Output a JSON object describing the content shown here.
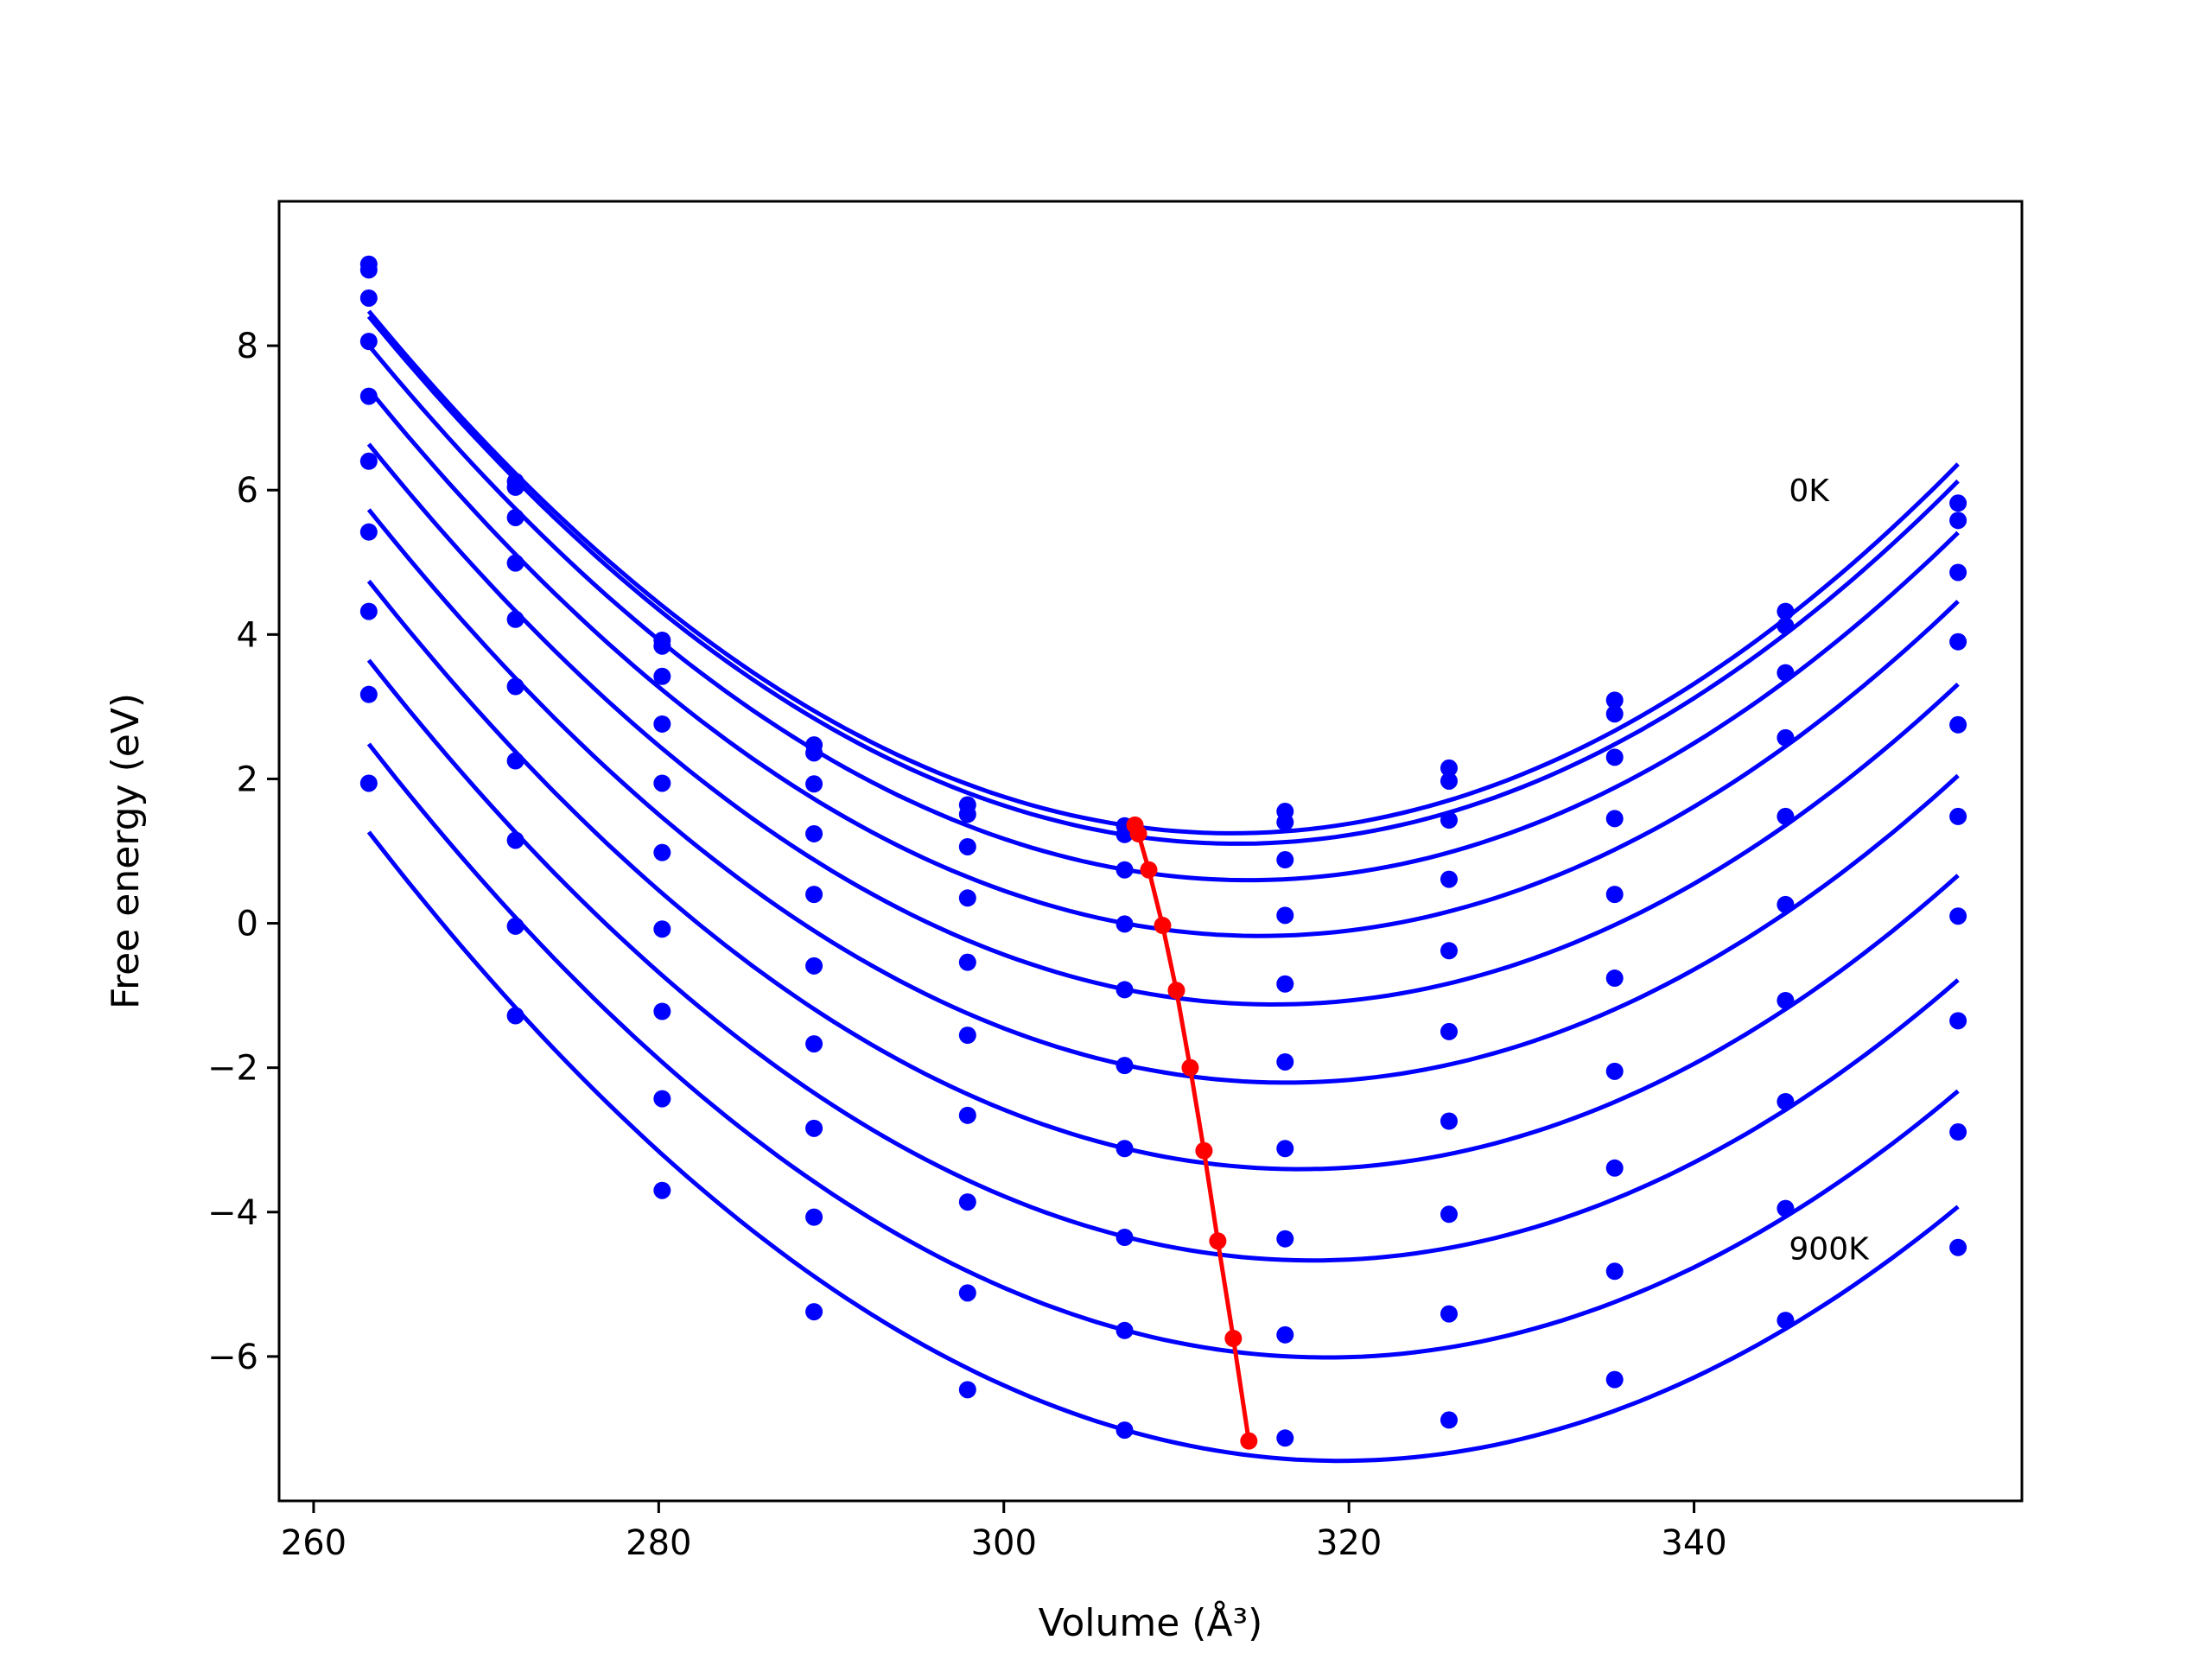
{
  "chart_data": {
    "type": "line",
    "xlabel": "Volume (Å³)",
    "ylabel": "Free energy (eV)",
    "xlim": [
      258,
      359
    ],
    "ylim": [
      -8.0,
      10.0
    ],
    "x_ticks": [
      260,
      280,
      300,
      320,
      340
    ],
    "y_ticks": [
      -6,
      -4,
      -2,
      0,
      2,
      4,
      6,
      8
    ],
    "x_tick_labels": [
      "260",
      "280",
      "300",
      "320",
      "340"
    ],
    "y_tick_labels": [
      "−6",
      "−4",
      "−2",
      "0",
      "2",
      "4",
      "6",
      "8"
    ],
    "grid": false,
    "legend": "none",
    "annotations": [
      {
        "text": "0K",
        "x": 345.5,
        "y": 6.0
      },
      {
        "text": "900K",
        "x": 345.5,
        "y": -4.5
      }
    ],
    "series_color": "#0000ff",
    "minima_color": "#ff0000",
    "x": [
      263.2,
      271.7,
      280.2,
      289.0,
      297.9,
      307.0,
      316.3,
      325.8,
      335.4,
      345.3,
      355.3
    ],
    "series": [
      {
        "values": [
          9.13,
          6.12,
          3.92,
          2.47,
          1.64,
          1.35,
          1.55,
          2.15,
          3.09,
          4.32,
          5.82
        ],
        "min_x": 307.6,
        "min_y": 1.36
      },
      {
        "values": [
          9.05,
          6.04,
          3.84,
          2.36,
          1.51,
          1.23,
          1.4,
          1.97,
          2.9,
          4.12,
          5.58
        ],
        "min_x": 307.8,
        "min_y": 1.24
      },
      {
        "values": [
          8.66,
          5.62,
          3.42,
          1.93,
          1.06,
          0.74,
          0.88,
          1.43,
          2.3,
          3.47,
          4.86
        ],
        "min_x": 308.4,
        "min_y": 0.74
      },
      {
        "values": [
          8.06,
          4.99,
          2.76,
          1.24,
          0.35,
          -0.01,
          0.11,
          0.61,
          1.45,
          2.57,
          3.9
        ],
        "min_x": 309.2,
        "min_y": -0.03
      },
      {
        "values": [
          7.3,
          4.21,
          1.94,
          0.4,
          -0.54,
          -0.92,
          -0.84,
          -0.38,
          0.4,
          1.48,
          2.75
        ],
        "min_x": 310.0,
        "min_y": -0.93
      },
      {
        "values": [
          6.4,
          3.28,
          0.98,
          -0.59,
          -1.55,
          -1.97,
          -1.92,
          -1.5,
          -0.76,
          0.26,
          1.48
        ],
        "min_x": 310.8,
        "min_y": -2.0
      },
      {
        "values": [
          5.42,
          2.25,
          -0.08,
          -1.67,
          -2.66,
          -3.12,
          -3.12,
          -2.74,
          -2.05,
          -1.07,
          0.1
        ],
        "min_x": 311.6,
        "min_y": -3.15
      },
      {
        "values": [
          4.32,
          1.15,
          -1.22,
          -2.84,
          -3.86,
          -4.35,
          -4.37,
          -4.03,
          -3.39,
          -2.47,
          -1.35
        ],
        "min_x": 312.4,
        "min_y": -4.4
      },
      {
        "values": [
          3.17,
          -0.04,
          -2.43,
          -4.07,
          -5.12,
          -5.64,
          -5.7,
          -5.41,
          -4.82,
          -3.95,
          -2.89
        ],
        "min_x": 313.3,
        "min_y": -5.75
      },
      {
        "values": [
          1.94,
          -1.28,
          -3.7,
          -5.38,
          -6.46,
          -7.02,
          -7.13,
          -6.88,
          -6.32,
          -5.5,
          -4.49
        ],
        "min_x": 314.2,
        "min_y": -7.17
      }
    ]
  }
}
